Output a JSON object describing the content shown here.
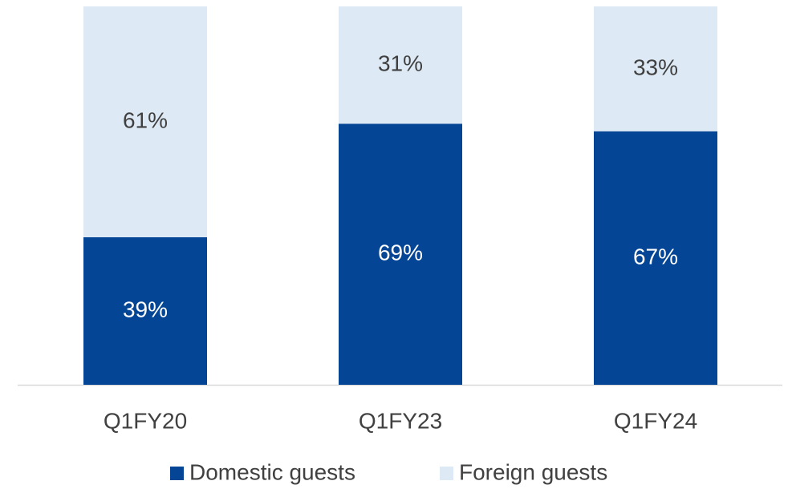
{
  "chart_data": {
    "type": "stacked_bar",
    "categories": [
      "Q1FY20",
      "Q1FY23",
      "Q1FY24"
    ],
    "series": [
      {
        "name": "Domestic guests",
        "color": "#044595",
        "values": [
          39,
          69,
          67
        ],
        "value_labels": [
          "39%",
          "69%",
          "67%"
        ]
      },
      {
        "name": "Foreign guests",
        "color": "#dde9f5",
        "values": [
          61,
          31,
          33
        ],
        "value_labels": [
          "61%",
          "31%",
          "33%"
        ]
      }
    ],
    "ylim": [
      0,
      100
    ],
    "legend": "bottom"
  }
}
